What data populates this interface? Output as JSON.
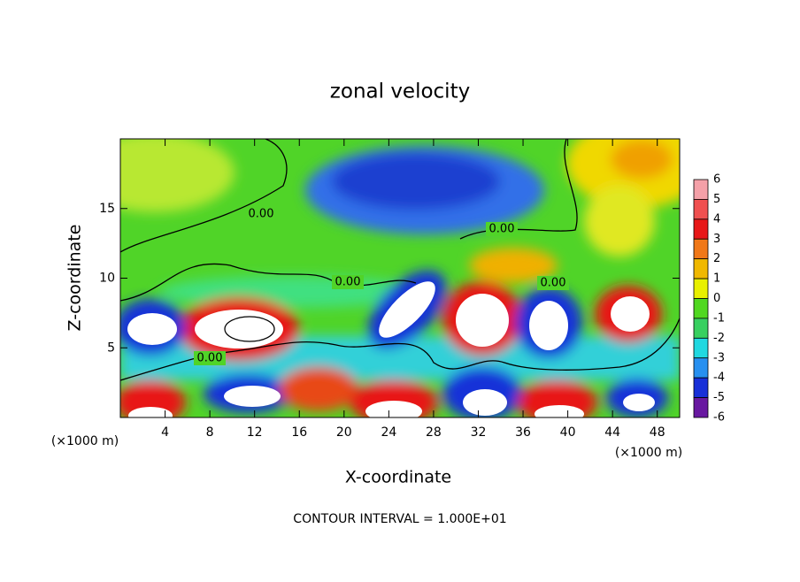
{
  "chart_data": {
    "type": "contour",
    "title": "zonal velocity",
    "x_label": "X-coordinate",
    "y_label": "Z-coordinate",
    "x_unit_left": "(×1000 m)",
    "x_unit_right": "(×1000 m)",
    "subtitle": "CONTOUR INTERVAL = 1.000E+01",
    "xlim": [
      0,
      50
    ],
    "xticks": [
      4,
      8,
      12,
      16,
      20,
      24,
      28,
      32,
      36,
      40,
      44,
      48
    ],
    "ylim": [
      0,
      20
    ],
    "yticks": [
      5,
      10,
      15
    ],
    "contour_labels": [
      {
        "value": 0,
        "label": "0.00"
      },
      {
        "value": 0,
        "label": "0.00"
      },
      {
        "value": 0,
        "label": "0.00"
      },
      {
        "value": 0,
        "label": "0.00"
      },
      {
        "value": 0,
        "label": "0.00"
      }
    ],
    "colorbar": {
      "levels": [
        6,
        5,
        4,
        3,
        2,
        1,
        0,
        -1,
        -2,
        -3,
        -4,
        -5,
        -6
      ],
      "colors": [
        "#f4a0a8",
        "#f05050",
        "#e81818",
        "#f07818",
        "#f0b800",
        "#e8f000",
        "#50d820",
        "#38d060",
        "#20d8e0",
        "#2890f0",
        "#1830d8",
        "#6818a0"
      ]
    }
  }
}
